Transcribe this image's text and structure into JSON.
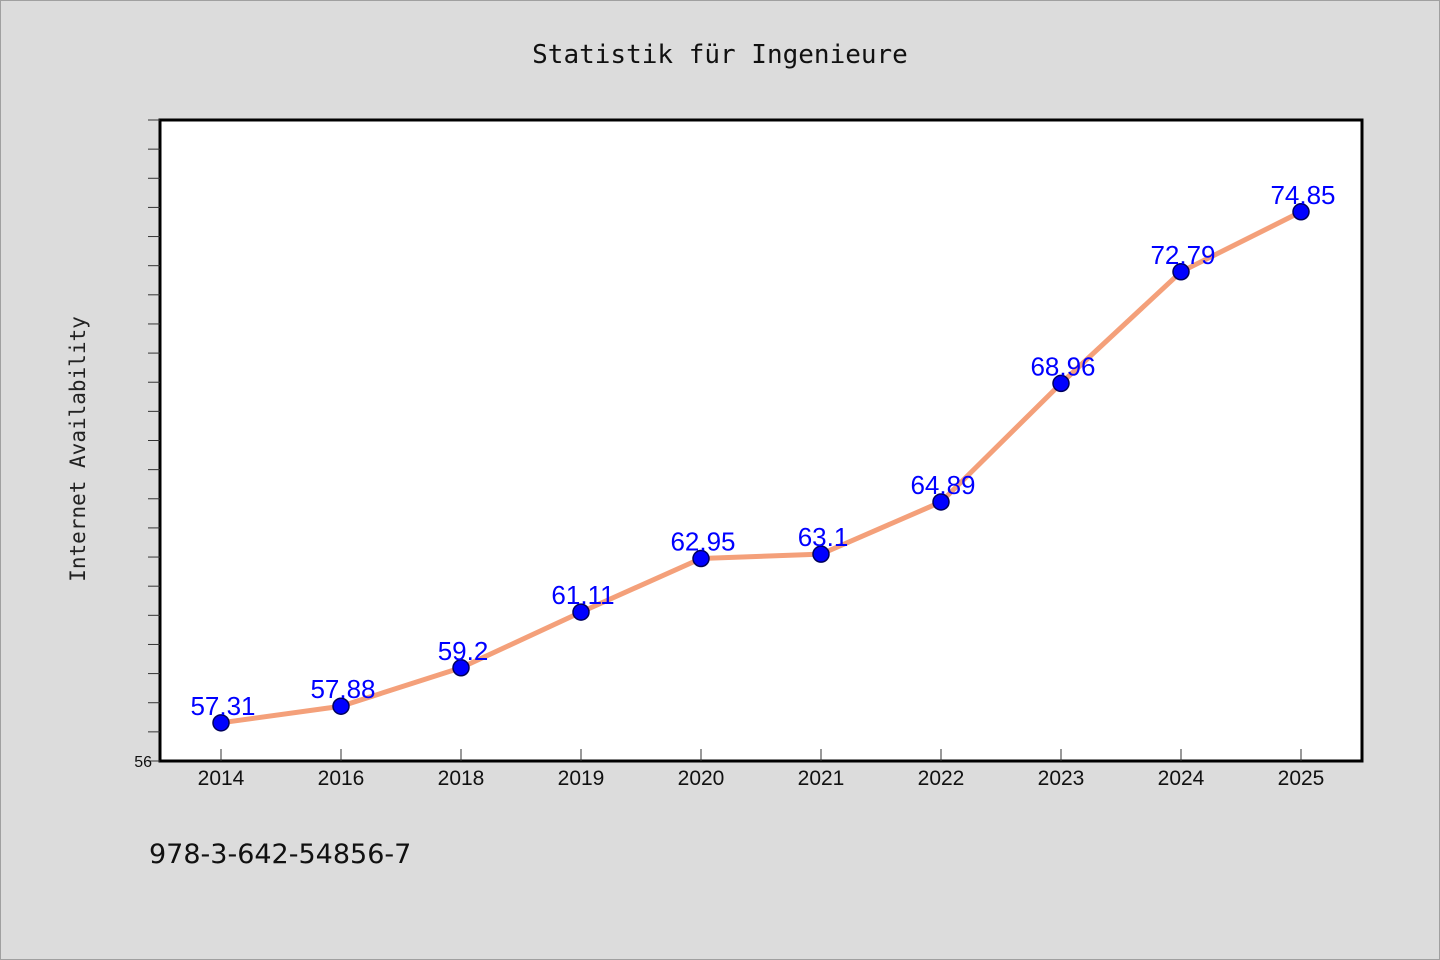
{
  "chart_data": {
    "type": "line",
    "title": "Statistik für Ingenieure",
    "xlabel": "",
    "ylabel": "Internet Availability",
    "categories": [
      "2014",
      "2016",
      "2018",
      "2019",
      "2020",
      "2021",
      "2022",
      "2023",
      "2024",
      "2025"
    ],
    "series": [
      {
        "values": [
          57.31,
          57.88,
          59.2,
          61.11,
          62.95,
          63.1,
          64.89,
          68.96,
          72.79,
          74.85
        ],
        "labels": [
          "57.31",
          "57.88",
          "59.2",
          "61.11",
          "62.95",
          "63.1",
          "64.89",
          "68.96",
          "72.79",
          "74.85"
        ],
        "line_color": "#f4a07a",
        "marker_color": "#0000ff"
      }
    ],
    "ylim": [
      56,
      78
    ],
    "yticks_labeled": [
      "56"
    ],
    "minor_tick_step": 1,
    "grid": false,
    "legend": "none"
  },
  "footer_text": "978-3-642-54856-7"
}
